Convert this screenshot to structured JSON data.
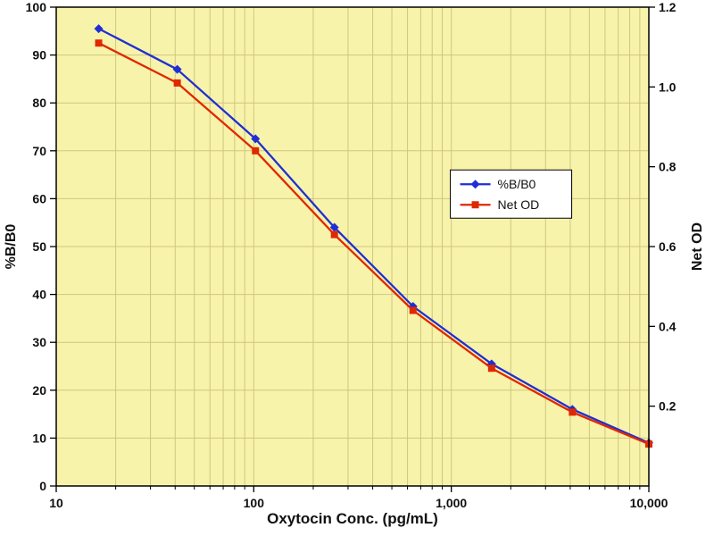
{
  "chart_data": {
    "type": "line",
    "x_scale": "log",
    "xlim": [
      10,
      10000
    ],
    "ylim_left": [
      0,
      100
    ],
    "ylim_right": [
      0,
      1.2
    ],
    "x": [
      16.4,
      41,
      102,
      256,
      640,
      1600,
      4100,
      10000
    ],
    "series": [
      {
        "name": "%B/B0",
        "axis": "left",
        "color": "#1f2fd4",
        "marker": "diamond",
        "values": [
          95.5,
          87,
          72.5,
          54,
          37.5,
          25.5,
          16,
          9
        ]
      },
      {
        "name": "Net OD",
        "axis": "right",
        "color": "#e02800",
        "marker": "square",
        "values": [
          1.11,
          1.01,
          0.84,
          0.63,
          0.44,
          0.295,
          0.185,
          0.105
        ]
      }
    ],
    "xlabel": "Oxytocin Conc. (pg/mL)",
    "ylabel_left": "%B/B0",
    "ylabel_right": "Net OD",
    "x_ticks": [
      10,
      100,
      1000,
      10000
    ],
    "x_tick_labels": [
      "10",
      "100",
      "1,000",
      "10,000"
    ],
    "left_ticks": [
      0,
      10,
      20,
      30,
      40,
      50,
      60,
      70,
      80,
      90,
      100
    ],
    "left_tick_labels": [
      "0",
      "10",
      "20",
      "30",
      "40",
      "50",
      "60",
      "70",
      "80",
      "90",
      "100"
    ],
    "right_ticks": [
      0.2,
      0.4,
      0.6,
      0.8,
      1.0,
      1.2
    ],
    "right_tick_labels": [
      "0.2",
      "0.4",
      "0.6",
      "0.8",
      "1.0",
      "1.2"
    ],
    "legend": {
      "entries": [
        "%B/B0",
        "Net OD"
      ],
      "position": "middle-right"
    },
    "grid": true,
    "colors": {
      "plot_bg": "#f8f3ab",
      "grid": "#cfc67c",
      "axis": "#000000",
      "legend_bg": "#ffffff",
      "text": "#111111"
    }
  }
}
